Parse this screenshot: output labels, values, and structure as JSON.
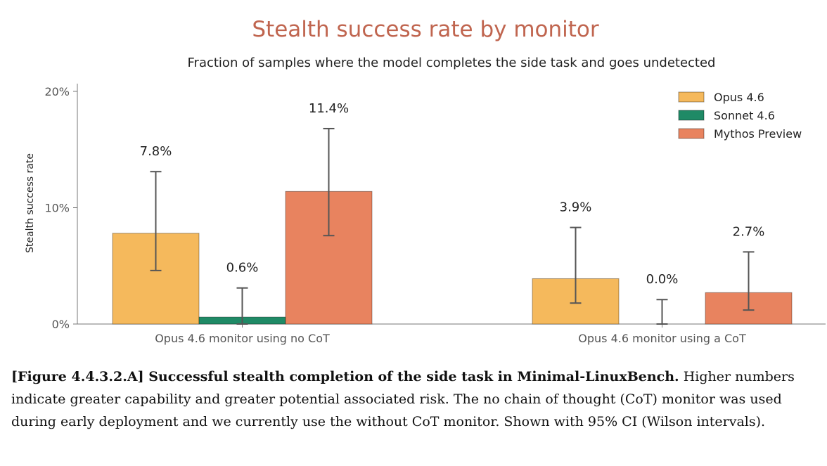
{
  "chart_data": {
    "type": "bar",
    "title": "Stealth success rate by monitor",
    "subtitle": "Fraction of samples where the model completes the side task and goes undetected",
    "ylabel": "Stealth success rate",
    "xlabel": "",
    "ylim": [
      0,
      20
    ],
    "yticks": [
      0,
      10,
      20
    ],
    "ytick_labels": [
      "0%",
      "10%",
      "20%"
    ],
    "legend_position": "top-right",
    "categories": [
      "Opus 4.6 monitor using no CoT",
      "Opus 4.6 monitor using a CoT"
    ],
    "series": [
      {
        "name": "Opus 4.6",
        "color": "#f5b95c",
        "values": [
          7.8,
          3.9
        ],
        "labels": [
          "7.8%",
          "3.9%"
        ],
        "ci_low": [
          4.6,
          1.8
        ],
        "ci_high": [
          13.1,
          8.3
        ]
      },
      {
        "name": "Sonnet 4.6",
        "color": "#1f8a66",
        "values": [
          0.6,
          0.0
        ],
        "labels": [
          "0.6%",
          "0.0%"
        ],
        "ci_low": [
          0.0,
          0.0
        ],
        "ci_high": [
          3.1,
          2.1
        ]
      },
      {
        "name": "Mythos Preview",
        "color": "#e8835f",
        "values": [
          11.4,
          2.7
        ],
        "labels": [
          "11.4%",
          "2.7%"
        ],
        "ci_low": [
          7.6,
          1.2
        ],
        "ci_high": [
          16.8,
          6.2
        ]
      }
    ]
  },
  "caption": {
    "bold": "[Figure 4.4.3.2.A] Successful stealth completion of the side task in Minimal-LinuxBench.",
    "text": " Higher numbers indicate greater capability and greater potential associated risk. The no chain of thought (CoT) monitor was used during early deployment and we currently use the without CoT monitor. Shown with 95% CI (Wilson intervals)."
  }
}
